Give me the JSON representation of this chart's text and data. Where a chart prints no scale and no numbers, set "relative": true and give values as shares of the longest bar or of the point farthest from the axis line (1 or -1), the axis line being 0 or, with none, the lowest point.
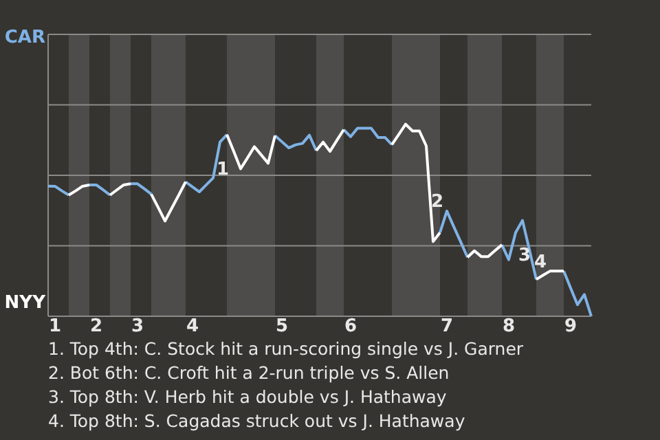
{
  "chart_data": {
    "type": "line",
    "relative": true,
    "categories": [
      null,
      "1",
      null,
      null,
      null,
      null,
      null,
      "2",
      null,
      null,
      null,
      null,
      null,
      "3",
      null,
      null,
      null,
      null,
      null,
      null,
      null,
      "4",
      null,
      null,
      null,
      null,
      null,
      null,
      null,
      null,
      null,
      null,
      null,
      null,
      "5",
      null,
      null,
      null,
      null,
      null,
      null,
      null,
      null,
      null,
      "6",
      null,
      null,
      null,
      null,
      null,
      null,
      null,
      null,
      null,
      null,
      null,
      null,
      null,
      "7",
      null,
      null,
      null,
      null,
      null,
      null,
      null,
      null,
      "8",
      null,
      null,
      null,
      null,
      null,
      null,
      null,
      null,
      "9",
      null,
      null,
      null
    ],
    "series": [
      {
        "color": "#7fb2e5",
        "values": [
          0.678,
          0.677,
          0.653,
          0.631,
          null,
          null,
          0.684,
          0.684,
          0.658,
          0.631,
          null,
          null,
          0.69,
          0.69,
          0.664,
          0.636,
          null,
          null,
          null,
          null,
          0.7,
          0.674,
          0.648,
          0.684,
          0.72,
          0.907,
          0.946,
          null,
          null,
          null,
          null,
          null,
          null,
          0.941,
          0.909,
          0.877,
          0.893,
          0.9,
          0.943,
          0.863,
          null,
          null,
          null,
          0.972,
          0.935,
          0.979,
          0.979,
          0.979,
          0.931,
          0.931,
          0.894,
          null,
          null,
          null,
          null,
          null,
          null,
          0.436,
          0.548,
          0.467,
          0.388,
          0.307,
          null,
          null,
          null,
          null,
          0.372,
          0.295,
          0.436,
          0.499,
          0.347,
          0.192,
          null,
          null,
          null,
          0.235,
          0.147,
          0.06,
          0.113,
          0
        ]
      },
      {
        "color": "#ffffff",
        "values": [
          null,
          null,
          null,
          0.631,
          0.653,
          0.677,
          0.684,
          null,
          null,
          0.631,
          0.658,
          0.684,
          0.69,
          null,
          null,
          0.636,
          0.567,
          0.496,
          0.564,
          0.631,
          0.7,
          null,
          null,
          null,
          null,
          null,
          0.946,
          0.858,
          0.768,
          0.825,
          0.883,
          0.84,
          0.797,
          0.941,
          null,
          null,
          null,
          null,
          null,
          0.863,
          0.907,
          0.859,
          0.916,
          0.972,
          null,
          null,
          null,
          null,
          null,
          null,
          0.894,
          0.947,
          1,
          0.965,
          0.965,
          0.887,
          0.389,
          0.436,
          null,
          null,
          null,
          0.307,
          0.341,
          0.311,
          0.311,
          0.342,
          0.372,
          null,
          null,
          null,
          null,
          0.192,
          0.214,
          0.235,
          0.235,
          0.235,
          null,
          null,
          null,
          null
        ]
      }
    ],
    "marker": "none",
    "line_style": "solid",
    "ref_lines": [
      {
        "axis": "y",
        "value": 0.367,
        "color": "#8a8a88"
      },
      {
        "axis": "y",
        "value": 0.734,
        "color": "#8a8a88"
      },
      {
        "axis": "y",
        "value": 1.101,
        "color": "#8a8a88"
      }
    ],
    "annotations": [
      "CAR",
      "NYY",
      "1",
      "2",
      "3",
      "4",
      "1. Top 4th: C. Stock hit a run-scoring single vs J. Garner",
      "2. Bot 6th: C. Croft hit a 2-run triple vs S. Allen",
      "3. Top 8th: V. Herb hit a double vs J. Hathaway",
      "4. Top 8th: S. Cagadas struck out vs J. Hathaway"
    ]
  }
}
